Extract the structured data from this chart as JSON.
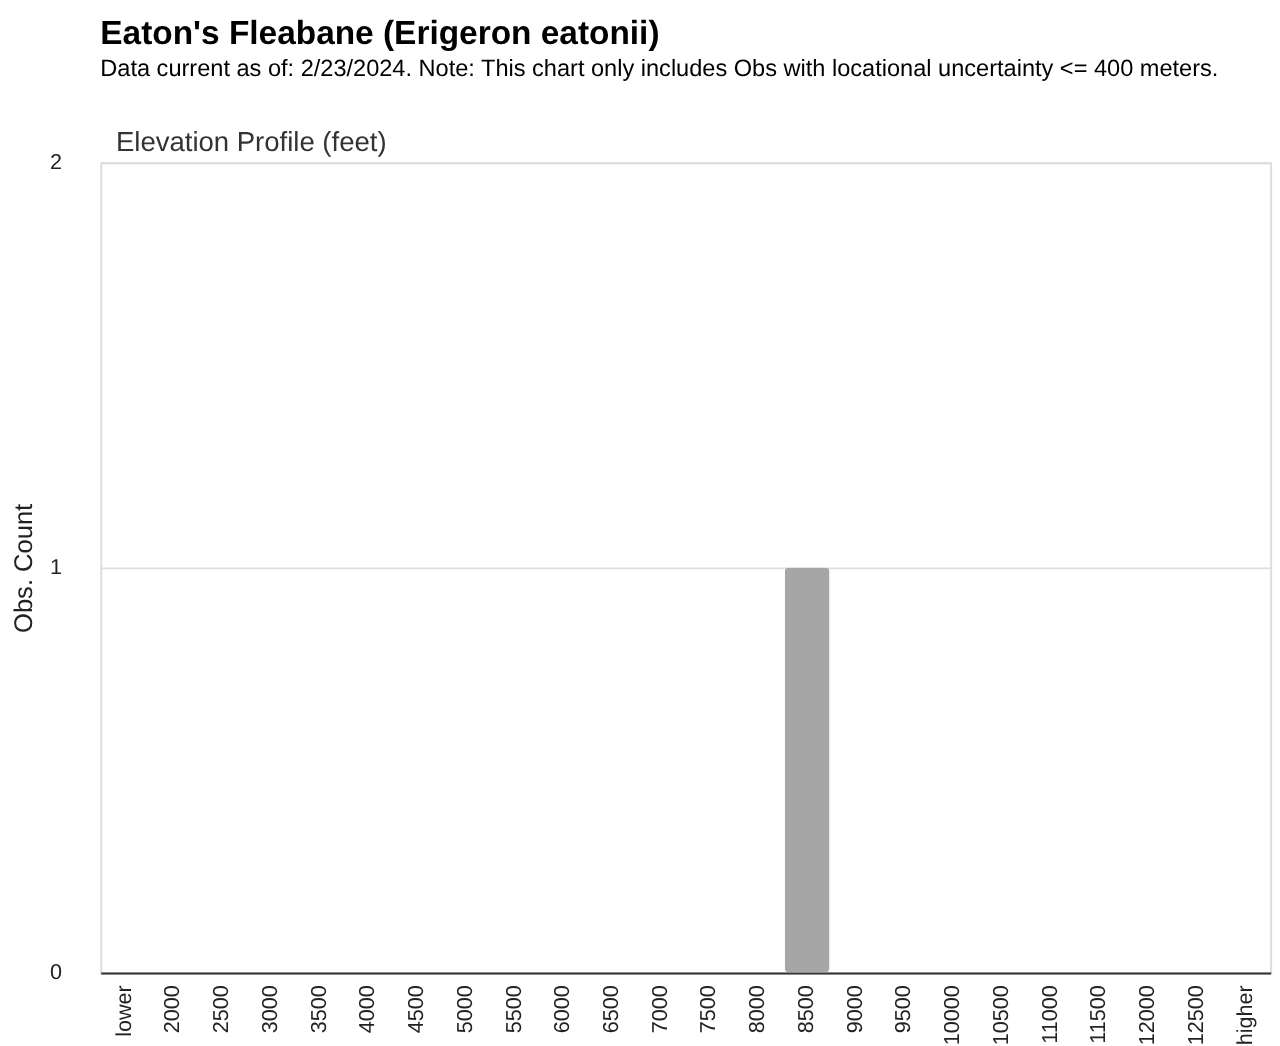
{
  "chart_data": {
    "type": "bar",
    "title": "Eaton's Fleabane   (Erigeron eatonii)",
    "subtitle": "Data current as of: 2/23/2024.    Note: This chart only includes Obs with locational uncertainty <= 400 meters.",
    "annotations": [
      "Elevation Profile (feet)"
    ],
    "ylabel": "Obs. Count",
    "categories": [
      "lower",
      "2000",
      "2500",
      "3000",
      "3500",
      "4000",
      "4500",
      "5000",
      "5500",
      "6000",
      "6500",
      "7000",
      "7500",
      "8000",
      "8500",
      "9000",
      "9500",
      "10000",
      "10500",
      "11000",
      "11500",
      "12000",
      "12500",
      "higher"
    ],
    "values": [
      0,
      0,
      0,
      0,
      0,
      0,
      0,
      0,
      0,
      0,
      0,
      0,
      0,
      0,
      1,
      0,
      0,
      0,
      0,
      0,
      0,
      0,
      0,
      0
    ],
    "color": "#a6a6a6",
    "ylim": [
      0,
      2
    ],
    "yticks": [
      0,
      1,
      2
    ],
    "grid": "y"
  }
}
